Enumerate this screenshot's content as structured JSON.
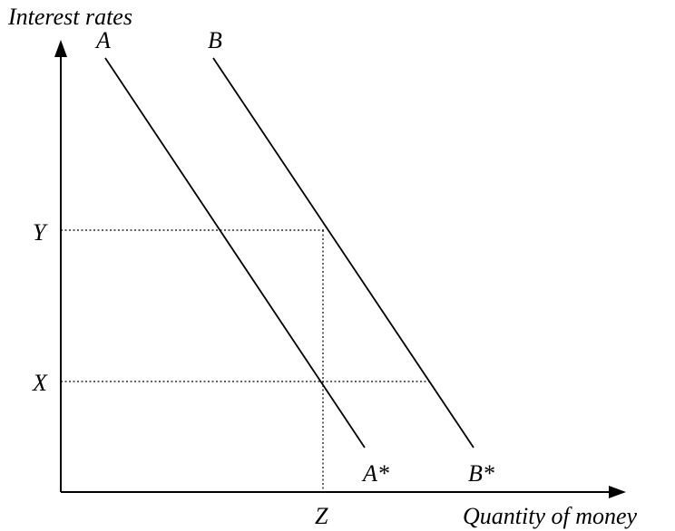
{
  "axes": {
    "y_label": "Interest rates",
    "x_label": "Quantity of money"
  },
  "curves": {
    "a": {
      "start_label": "A",
      "end_label": "A*"
    },
    "b": {
      "start_label": "B",
      "end_label": "B*"
    }
  },
  "levels": {
    "y_label": "Y",
    "x_label": "X",
    "z_label": "Z"
  },
  "colors": {
    "line": "#000000",
    "background": "#ffffff"
  }
}
